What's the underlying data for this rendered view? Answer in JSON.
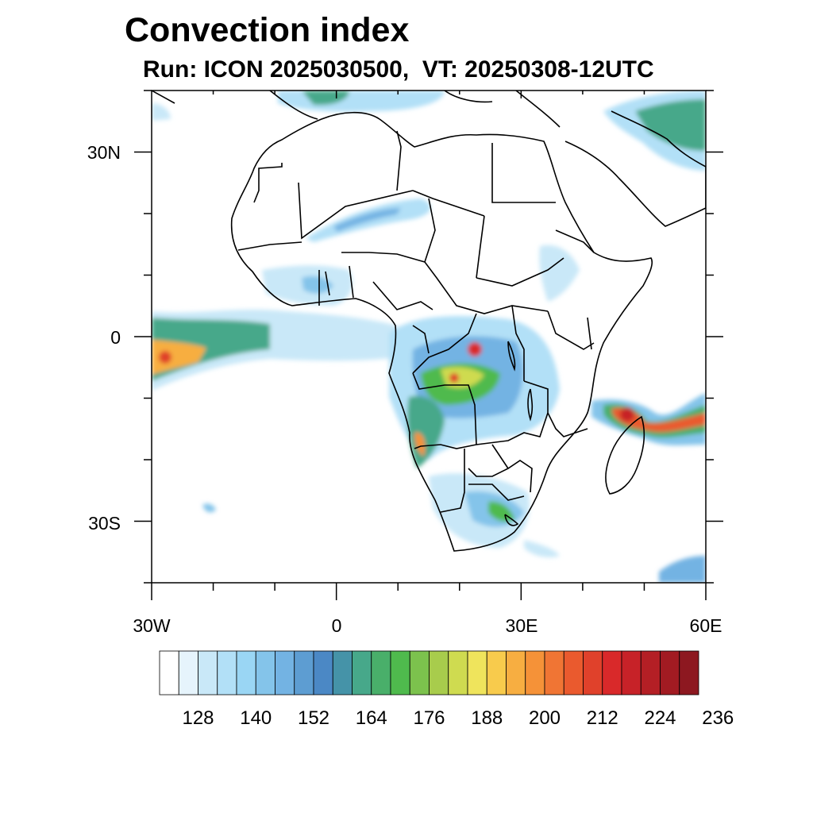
{
  "title": "Convection index",
  "subtitle": "Run: ICON 2025030500,  VT: 20250308-12UTC",
  "map": {
    "lon_range": [
      -30,
      60
    ],
    "lat_range": [
      -40,
      40
    ],
    "x_tick_labels": [
      "30W",
      "0",
      "30E",
      "60E"
    ],
    "x_tick_values": [
      -30,
      0,
      30,
      60
    ],
    "y_tick_labels": [
      "30N",
      "0",
      "30S"
    ],
    "y_tick_values": [
      30,
      0,
      -30
    ]
  },
  "colorbar": {
    "colors": [
      "#ffffff",
      "#e6f4fc",
      "#c9e8f8",
      "#b2e0f7",
      "#9ad6f4",
      "#84c4ea",
      "#73b3e3",
      "#5d9dd2",
      "#4b88c5",
      "#4593a8",
      "#47a88a",
      "#49af6a",
      "#4fba4d",
      "#7cc24d",
      "#a8cc4c",
      "#cfdb50",
      "#efe45c",
      "#f8cb4c",
      "#f7ae41",
      "#f59238",
      "#f07534",
      "#ea5a2e",
      "#e0412b",
      "#d9292a",
      "#c72228",
      "#b41f25",
      "#a21b22",
      "#8d1820"
    ],
    "labels": [
      "128",
      "140",
      "152",
      "164",
      "176",
      "188",
      "200",
      "212",
      "224",
      "236"
    ]
  }
}
